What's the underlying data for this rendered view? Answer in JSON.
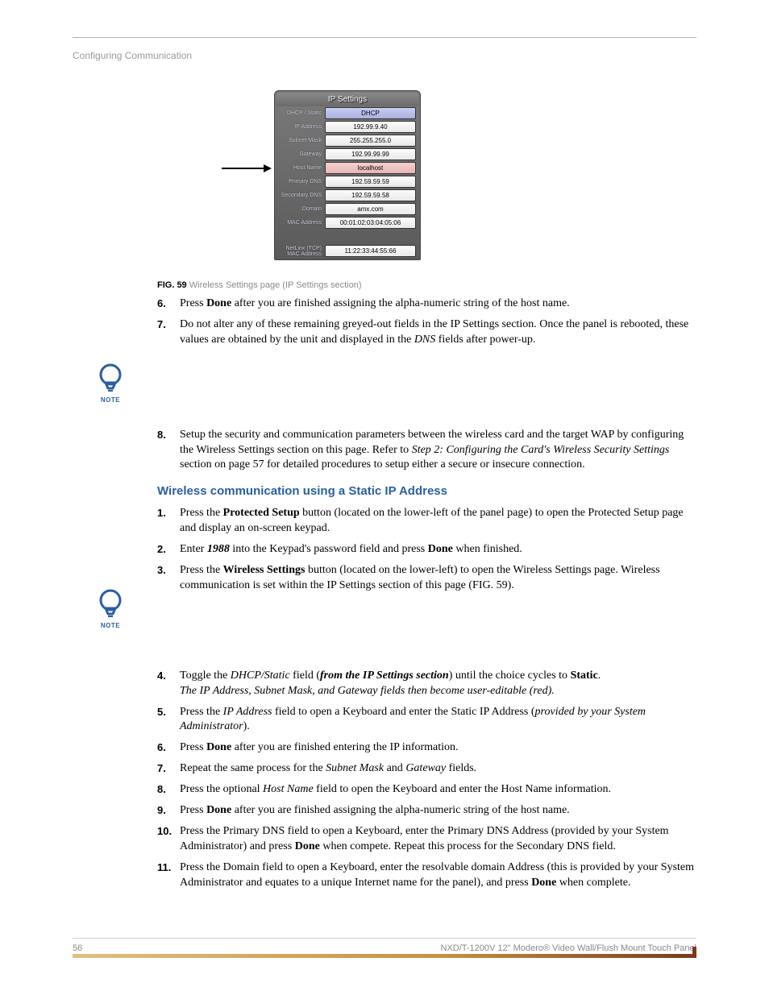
{
  "header": {
    "section": "Configuring Communication"
  },
  "figure": {
    "title": "IP Settings",
    "rows": [
      {
        "label": "DHCP / Static",
        "value": "DHCP",
        "style": "blue"
      },
      {
        "label": "IP Address",
        "value": "192.99.9.40",
        "style": ""
      },
      {
        "label": "Subnet Mask",
        "value": "255.255.255.0",
        "style": ""
      },
      {
        "label": "Gateway",
        "value": "192.99.99.99",
        "style": ""
      },
      {
        "label": "Host Name",
        "value": "localhost",
        "style": "pink"
      },
      {
        "label": "Primary DNS",
        "value": "192.59.59.59",
        "style": ""
      },
      {
        "label": "Secondary DNS",
        "value": "192.59.59.58",
        "style": ""
      },
      {
        "label": "Domain",
        "value": "amx.com",
        "style": ""
      },
      {
        "label": "MAC Address",
        "value": "00:01:02:03:04:05:06",
        "style": ""
      }
    ],
    "extra": {
      "label": "NetLinx (TCP)\nMAC Address",
      "value": "11:22:33:44:55:66"
    },
    "caption_bold": "FIG. 59",
    "caption_rest": " Wireless Settings page (IP Settings section)"
  },
  "list1": [
    {
      "n": "6.",
      "html": "Press <b>Done</b> after you are finished assigning the alpha-numeric string of the host name."
    },
    {
      "n": "7.",
      "html": "Do not alter any of these remaining greyed-out fields in the IP Settings section. Once the panel is rebooted, these values are obtained by the unit and displayed in the <i>DNS</i> fields after power-up."
    }
  ],
  "list1b": [
    {
      "n": "8.",
      "html": "Setup the security and communication parameters between the wireless card and the target WAP by configuring the Wireless Settings section on this page. Refer to <i>Step 2: Configuring the Card's Wireless Security Settings</i> section on page 57 for detailed procedures to setup either a secure or insecure connection."
    }
  ],
  "heading": "Wireless communication using a Static IP Address",
  "list2": [
    {
      "n": "1.",
      "html": "Press the <b>Protected Setup</b> button (located on the lower-left of the panel page) to open the Protected Setup page and display an on-screen keypad."
    },
    {
      "n": "2.",
      "html": "Enter <b><i>1988</i></b> into the Keypad's password field and press <b>Done</b> when finished."
    },
    {
      "n": "3.",
      "html": "Press the <b>Wireless Settings</b> button (located on the lower-left) to open the Wireless Settings page. Wireless communication is set within the IP Settings section of this page (FIG. 59)."
    }
  ],
  "list2b": [
    {
      "n": "4.",
      "html": "Toggle the <i>DHCP/Static</i> field (<b><i>from the IP Settings section</i></b>) until the choice cycles to <b>Static</b>.<br><i>The IP Address, Subnet Mask, and Gateway fields then become user-editable (red).</i>"
    },
    {
      "n": "5.",
      "html": "Press the <i>IP Address</i> field to open a Keyboard and enter the Static IP Address (<i>provided by your System Administrator</i>)."
    },
    {
      "n": "6.",
      "html": "Press <b>Done</b> after you are finished entering the IP information."
    },
    {
      "n": "7.",
      "html": "Repeat the same process for the <i>Subnet Mask</i> and <i>Gateway</i> fields."
    },
    {
      "n": "8.",
      "html": "Press the optional <i>Host Name</i> field to open the Keyboard and enter the Host Name information."
    },
    {
      "n": "9.",
      "html": "Press <b>Done</b> after you are finished assigning the alpha-numeric string of the host name."
    },
    {
      "n": "10.",
      "html": "Press the Primary DNS field to open a Keyboard, enter the Primary DNS Address (provided by your System Administrator) and press <b>Done</b> when compete. Repeat this process for the Secondary DNS field."
    },
    {
      "n": "11.",
      "html": "Press the Domain field to open a Keyboard, enter the resolvable domain Address (this is provided by your System Administrator and equates to a unique Internet name for the panel), and press <b>Done</b> when complete."
    }
  ],
  "note_label": "NOTE",
  "footer": {
    "page": "56",
    "title": "NXD/T-1200V 12\" Modero® Video Wall/Flush Mount Touch Panel"
  },
  "colors": {
    "accent": "#2a5fa0",
    "caption_grey": "#8a8a8a"
  }
}
